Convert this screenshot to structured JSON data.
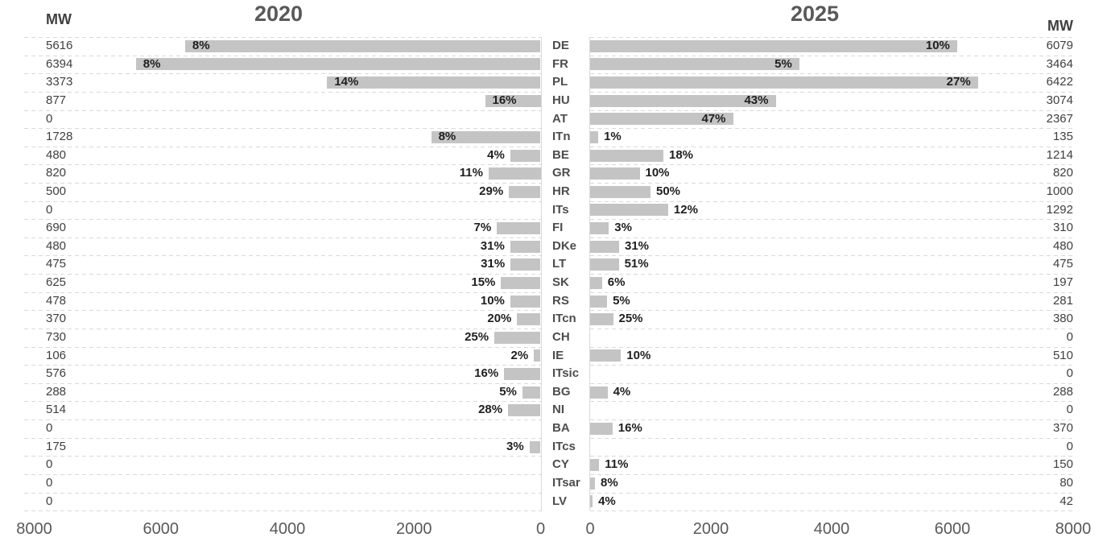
{
  "chart_data": {
    "type": "bar",
    "orientation": "horizontal-diverging",
    "panels": {
      "left_title": "2020",
      "right_title": "2025",
      "left_unit_label": "MW",
      "right_unit_label": "MW"
    },
    "axis": {
      "min": 0,
      "max": 8000,
      "left_ticks": [
        "8000",
        "6000",
        "4000",
        "2000",
        "0"
      ],
      "right_ticks": [
        "0",
        "2000",
        "4000",
        "6000",
        "8000"
      ],
      "grid": "dashed-horizontal"
    },
    "legend_position": "none",
    "colors": {
      "bar_fill": "#c4c4c4",
      "grid_line": "#d9d9d9",
      "title_text": "#595959",
      "value_text": "#3f3f3f",
      "pct_text": "#1f1f1f",
      "tick_text": "#595959"
    },
    "categories": [
      "DE",
      "FR",
      "PL",
      "HU",
      "AT",
      "ITn",
      "BE",
      "GR",
      "HR",
      "ITs",
      "FI",
      "DKe",
      "LT",
      "SK",
      "RS",
      "ITcn",
      "CH",
      "IE",
      "ITsic",
      "BG",
      "NI",
      "BA",
      "ITcs",
      "CY",
      "ITsar",
      "LV"
    ],
    "series": [
      {
        "name": "2020",
        "side": "left",
        "unit": "MW",
        "values": [
          5616,
          6394,
          3373,
          877,
          0,
          1728,
          480,
          820,
          500,
          0,
          690,
          480,
          475,
          625,
          478,
          370,
          730,
          106,
          576,
          288,
          514,
          0,
          175,
          0,
          0,
          0
        ],
        "pct_labels": [
          "8%",
          "8%",
          "14%",
          "16%",
          "",
          "8%",
          "4%",
          "11%",
          "29%",
          "",
          "7%",
          "31%",
          "31%",
          "15%",
          "10%",
          "20%",
          "25%",
          "2%",
          "16%",
          "5%",
          "28%",
          "",
          "3%",
          "",
          "",
          ""
        ],
        "pct_placement": [
          "inside",
          "inside",
          "inside",
          "inside",
          "",
          "inside",
          "outside",
          "outside",
          "outside",
          "",
          "outside",
          "outside",
          "outside",
          "outside",
          "outside",
          "outside",
          "outside",
          "outside",
          "outside",
          "outside",
          "outside",
          "",
          "outside",
          "",
          "",
          ""
        ]
      },
      {
        "name": "2025",
        "side": "right",
        "unit": "MW",
        "values": [
          6079,
          3464,
          6422,
          3074,
          2367,
          135,
          1214,
          820,
          1000,
          1292,
          310,
          480,
          475,
          197,
          281,
          380,
          0,
          510,
          0,
          288,
          0,
          370,
          0,
          150,
          80,
          42
        ],
        "pct_labels": [
          "10%",
          "5%",
          "27%",
          "43%",
          "47%",
          "1%",
          "18%",
          "10%",
          "50%",
          "12%",
          "3%",
          "31%",
          "51%",
          "6%",
          "5%",
          "25%",
          "",
          "10%",
          "",
          "4%",
          "",
          "16%",
          "",
          "11%",
          "8%",
          "4%"
        ],
        "pct_placement": [
          "inside",
          "inside",
          "inside",
          "inside",
          "inside",
          "outside",
          "outside",
          "outside",
          "outside",
          "outside",
          "outside",
          "outside",
          "outside",
          "outside",
          "outside",
          "outside",
          "",
          "outside",
          "",
          "outside",
          "",
          "outside",
          "",
          "outside",
          "outside",
          "outside"
        ]
      }
    ]
  }
}
